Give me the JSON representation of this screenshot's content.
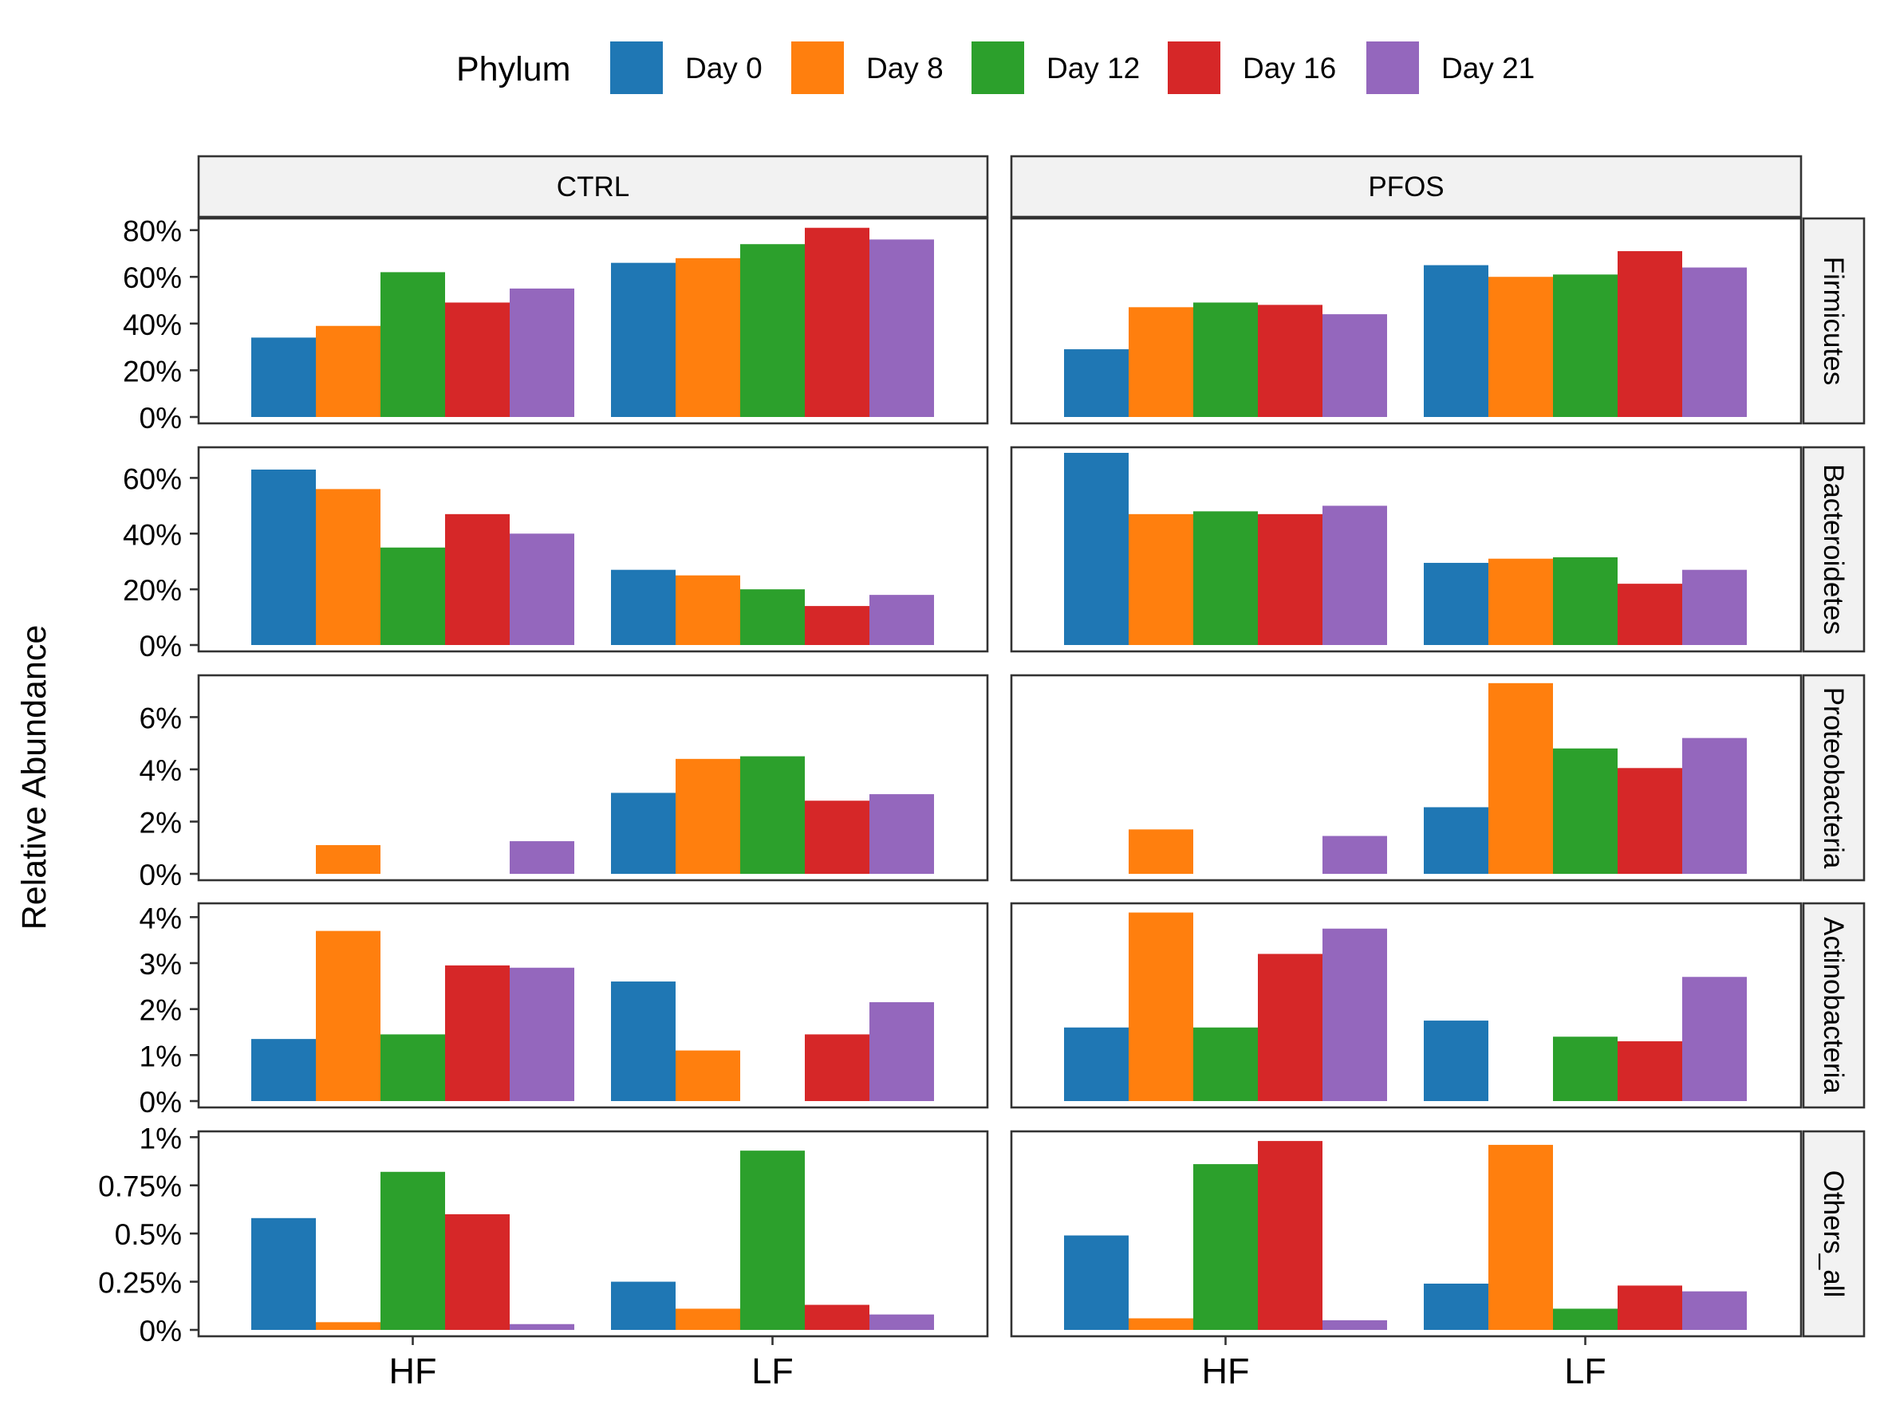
{
  "chart_data": {
    "type": "bar",
    "ylabel": "Relative Abundance",
    "legend": {
      "title": "Phylum",
      "position": "top",
      "entries": [
        "Day 0",
        "Day 8",
        "Day 12",
        "Day 16",
        "Day 21"
      ],
      "colors": [
        "#1f77b4",
        "#ff7f0e",
        "#2ca02c",
        "#d62728",
        "#9467bd"
      ]
    },
    "column_facets": [
      "CTRL",
      "PFOS"
    ],
    "categories": [
      "HF",
      "LF"
    ],
    "grid": false,
    "rows": [
      {
        "facet": "Firmicutes",
        "ylim": [
          0,
          85
        ],
        "ticks": [
          0,
          20,
          40,
          60,
          80
        ],
        "tick_labels": [
          "0%",
          "20%",
          "40%",
          "60%",
          "80%"
        ],
        "values": {
          "CTRL": {
            "HF": {
              "Day 0": 34,
              "Day 8": 39,
              "Day 12": 62,
              "Day 16": 49,
              "Day 21": 55
            },
            "LF": {
              "Day 0": 66,
              "Day 8": 68,
              "Day 12": 74,
              "Day 16": 81,
              "Day 21": 76
            }
          },
          "PFOS": {
            "HF": {
              "Day 0": 29,
              "Day 8": 47,
              "Day 12": 49,
              "Day 16": 48,
              "Day 21": 44
            },
            "LF": {
              "Day 0": 65,
              "Day 8": 60,
              "Day 12": 61,
              "Day 16": 71,
              "Day 21": 64
            }
          }
        }
      },
      {
        "facet": "Bacteroidetes",
        "ylim": [
          0,
          71
        ],
        "ticks": [
          0,
          20,
          40,
          60
        ],
        "tick_labels": [
          "0%",
          "20%",
          "40%",
          "60%"
        ],
        "values": {
          "CTRL": {
            "HF": {
              "Day 0": 63,
              "Day 8": 56,
              "Day 12": 35,
              "Day 16": 47,
              "Day 21": 40
            },
            "LF": {
              "Day 0": 27,
              "Day 8": 25,
              "Day 12": 20,
              "Day 16": 14,
              "Day 21": 18
            }
          },
          "PFOS": {
            "HF": {
              "Day 0": 69,
              "Day 8": 47,
              "Day 12": 48,
              "Day 16": 47,
              "Day 21": 50
            },
            "LF": {
              "Day 0": 29.5,
              "Day 8": 31,
              "Day 12": 31.5,
              "Day 16": 22,
              "Day 21": 27
            }
          }
        }
      },
      {
        "facet": "Proteobacteria",
        "ylim": [
          0,
          7.6
        ],
        "ticks": [
          0,
          2,
          4,
          6
        ],
        "tick_labels": [
          "0%",
          "2%",
          "4%",
          "6%"
        ],
        "values": {
          "CTRL": {
            "HF": {
              "Day 0": 0,
              "Day 8": 1.1,
              "Day 12": 0,
              "Day 16": 0,
              "Day 21": 1.25
            },
            "LF": {
              "Day 0": 3.1,
              "Day 8": 4.4,
              "Day 12": 4.5,
              "Day 16": 2.8,
              "Day 21": 3.05
            }
          },
          "PFOS": {
            "HF": {
              "Day 0": 0,
              "Day 8": 1.7,
              "Day 12": 0,
              "Day 16": 0,
              "Day 21": 1.45
            },
            "LF": {
              "Day 0": 2.55,
              "Day 8": 7.3,
              "Day 12": 4.8,
              "Day 16": 4.05,
              "Day 21": 5.2
            }
          }
        }
      },
      {
        "facet": "Actinobacteria",
        "ylim": [
          0,
          4.3
        ],
        "ticks": [
          0,
          1,
          2,
          3,
          4
        ],
        "tick_labels": [
          "0%",
          "1%",
          "2%",
          "3%",
          "4%"
        ],
        "values": {
          "CTRL": {
            "HF": {
              "Day 0": 1.35,
              "Day 8": 3.7,
              "Day 12": 1.45,
              "Day 16": 2.95,
              "Day 21": 2.9
            },
            "LF": {
              "Day 0": 2.6,
              "Day 8": 1.1,
              "Day 12": 0,
              "Day 16": 1.45,
              "Day 21": 2.15
            }
          },
          "PFOS": {
            "HF": {
              "Day 0": 1.6,
              "Day 8": 4.1,
              "Day 12": 1.6,
              "Day 16": 3.2,
              "Day 21": 3.75
            },
            "LF": {
              "Day 0": 1.75,
              "Day 8": 0,
              "Day 12": 1.4,
              "Day 16": 1.3,
              "Day 21": 2.7
            }
          }
        }
      },
      {
        "facet": "Others_all",
        "ylim": [
          0,
          1.03
        ],
        "ticks": [
          0,
          0.25,
          0.5,
          0.75,
          1
        ],
        "tick_labels": [
          "0%",
          "0.25%",
          "0.5%",
          "0.75%",
          "1%"
        ],
        "values": {
          "CTRL": {
            "HF": {
              "Day 0": 0.58,
              "Day 8": 0.04,
              "Day 12": 0.82,
              "Day 16": 0.6,
              "Day 21": 0.03
            },
            "LF": {
              "Day 0": 0.25,
              "Day 8": 0.11,
              "Day 12": 0.93,
              "Day 16": 0.13,
              "Day 21": 0.08
            }
          },
          "PFOS": {
            "HF": {
              "Day 0": 0.49,
              "Day 8": 0.06,
              "Day 12": 0.86,
              "Day 16": 0.98,
              "Day 21": 0.05
            },
            "LF": {
              "Day 0": 0.24,
              "Day 8": 0.96,
              "Day 12": 0.11,
              "Day 16": 0.23,
              "Day 21": 0.2
            }
          }
        }
      }
    ]
  }
}
